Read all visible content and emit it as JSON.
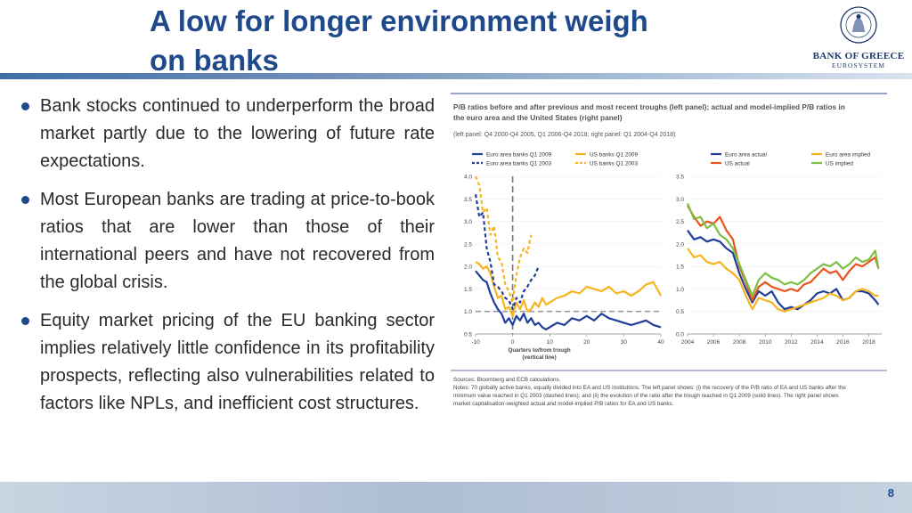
{
  "slide": {
    "title_line1": "A low for longer environment weigh",
    "title_line2": "on banks",
    "page_number": "8"
  },
  "logo": {
    "seal_text": "BANK OF GREECE 1928",
    "name": "BANK OF GREECE",
    "sub": "EUROSYSTEM"
  },
  "bullets": [
    "Bank stocks continued to underperform the broad market partly due to the lowering of future rate expectations.",
    "Most European banks are trading at price-to-book ratios that are lower than those of their international peers and have not recovered from the global crisis.",
    "Equity market pricing of the EU banking sector implies relatively little confidence in its profitability prospects, reflecting also vulnerabilities related to factors like NPLs, and inefficient cost structures."
  ],
  "figure": {
    "heading_line1": "P/B ratios before and after previous and most recent troughs (left panel); actual and model-implied P/B ratios in",
    "heading_line2": "the euro area and the United States (right panel)",
    "subheading": "(left panel: Q4 2000-Q4 2005, Q1 2006-Q4 2018; right panel: Q1 2004-Q4 2018)",
    "note_line1": "Sources: Bloomberg and ECB calculations.",
    "note_line2": "Notes: 70 globally active banks, equally divided into EA and US institutions. The left panel shows: (i) the recovery of the P/B ratio of EA and US banks after the",
    "note_line3": "minimum value reached in Q1 2003 (dashed lines); and (ii) the evolution of the ratio after the trough reached in Q1 2009 (solid lines). The right panel shows",
    "note_line4": "market capitalisation-weighted actual and model-implied P/B ratios for EA and US banks."
  },
  "colors": {
    "title": "#1e4a8c",
    "euro_area": "#1f3d99",
    "us": "#f6b51e",
    "euro_implied": "#f6b51e",
    "us_actual": "#e8541e",
    "us_implied": "#7bc043",
    "reference": "#9a9a9a"
  },
  "chart_data": [
    {
      "type": "line",
      "panel": "left",
      "xlabel": "Quarters to/from trough",
      "xlabel_sub": "(vertical line)",
      "ylabel": "",
      "xlim": [
        -10,
        40
      ],
      "ylim": [
        0.5,
        4.0
      ],
      "xticks": [
        "-10",
        "0",
        "10",
        "20",
        "30",
        "40"
      ],
      "yticks": [
        "0.5",
        "1.0",
        "1.5",
        "2.0",
        "2.5",
        "3.0",
        "3.5",
        "4.0"
      ],
      "reference_line": 1.0,
      "trough_line_x": 0,
      "legend_position": "top",
      "series": [
        {
          "name": "Euro area banks Q1 2009",
          "style": "solid",
          "color_key": "euro_area",
          "x": [
            -10,
            -9,
            -8,
            -7,
            -6,
            -5,
            -4,
            -3,
            -2,
            -1,
            0,
            1,
            2,
            3,
            4,
            5,
            6,
            7,
            8,
            9,
            10,
            12,
            14,
            16,
            18,
            20,
            22,
            24,
            26,
            28,
            30,
            32,
            34,
            36,
            38,
            40
          ],
          "y": [
            1.9,
            1.8,
            1.7,
            1.65,
            1.4,
            1.2,
            1.05,
            0.95,
            0.75,
            0.85,
            0.7,
            0.9,
            0.8,
            0.95,
            0.75,
            0.85,
            0.7,
            0.75,
            0.65,
            0.6,
            0.65,
            0.75,
            0.7,
            0.85,
            0.8,
            0.9,
            0.8,
            0.95,
            0.85,
            0.8,
            0.75,
            0.7,
            0.75,
            0.8,
            0.7,
            0.65
          ]
        },
        {
          "name": "US banks Q1 2009",
          "style": "solid",
          "color_key": "us",
          "x": [
            -10,
            -9,
            -8,
            -7,
            -6,
            -5,
            -4,
            -3,
            -2,
            -1,
            0,
            1,
            2,
            3,
            4,
            5,
            6,
            7,
            8,
            9,
            10,
            12,
            14,
            16,
            18,
            20,
            22,
            24,
            26,
            28,
            30,
            32,
            34,
            36,
            38,
            40
          ],
          "y": [
            2.1,
            2.05,
            1.95,
            2.0,
            1.85,
            1.55,
            1.3,
            1.35,
            1.05,
            1.1,
            0.9,
            1.2,
            1.05,
            1.25,
            1.0,
            1.05,
            1.2,
            1.1,
            1.3,
            1.15,
            1.2,
            1.3,
            1.35,
            1.45,
            1.4,
            1.55,
            1.5,
            1.45,
            1.55,
            1.4,
            1.45,
            1.35,
            1.45,
            1.6,
            1.65,
            1.35
          ]
        },
        {
          "name": "Euro area banks Q1 2003",
          "style": "dashed",
          "color_key": "euro_area",
          "x": [
            -10,
            -9,
            -8,
            -7,
            -6,
            -5,
            -4,
            -3,
            -2,
            -1,
            0,
            1,
            2,
            3,
            4,
            5,
            6,
            7
          ],
          "y": [
            3.6,
            3.1,
            3.2,
            2.4,
            2.1,
            1.6,
            1.55,
            1.45,
            1.3,
            1.25,
            1.05,
            1.3,
            1.2,
            1.45,
            1.55,
            1.7,
            1.8,
            2.0
          ]
        },
        {
          "name": "US banks Q1 2003",
          "style": "dashed",
          "color_key": "us",
          "x": [
            -10,
            -9,
            -8,
            -7,
            -6,
            -5,
            -4,
            -3,
            -2,
            -1,
            0,
            1,
            2,
            3,
            4,
            5
          ],
          "y": [
            4.0,
            3.8,
            3.2,
            3.3,
            2.7,
            2.9,
            2.2,
            2.1,
            1.6,
            1.45,
            1.2,
            1.8,
            2.2,
            2.4,
            2.3,
            2.7
          ]
        }
      ]
    },
    {
      "type": "line",
      "panel": "right",
      "xlabel": "",
      "ylabel": "",
      "xlim": [
        2004,
        2019
      ],
      "ylim": [
        0.0,
        3.5
      ],
      "xticks": [
        "2004",
        "2006",
        "2008",
        "2010",
        "2012",
        "2014",
        "2016",
        "2018"
      ],
      "yticks": [
        "0.0",
        "0.5",
        "1.0",
        "1.5",
        "2.0",
        "2.5",
        "3.0",
        "3.5"
      ],
      "legend_position": "top",
      "x": [
        2004.0,
        2004.5,
        2005.0,
        2005.5,
        2006.0,
        2006.5,
        2007.0,
        2007.5,
        2008.0,
        2008.5,
        2009.0,
        2009.5,
        2010.0,
        2010.5,
        2011.0,
        2011.5,
        2012.0,
        2012.5,
        2013.0,
        2013.5,
        2014.0,
        2014.5,
        2015.0,
        2015.5,
        2016.0,
        2016.5,
        2017.0,
        2017.5,
        2018.0,
        2018.5,
        2018.75
      ],
      "series": [
        {
          "name": "Euro area actual",
          "color_key": "euro_area",
          "y": [
            2.3,
            2.1,
            2.15,
            2.05,
            2.1,
            2.05,
            1.9,
            1.8,
            1.35,
            1.0,
            0.7,
            0.95,
            0.85,
            0.95,
            0.7,
            0.55,
            0.6,
            0.55,
            0.65,
            0.75,
            0.9,
            0.95,
            0.9,
            1.0,
            0.75,
            0.8,
            0.95,
            0.95,
            0.9,
            0.75,
            0.65
          ]
        },
        {
          "name": "Euro area implied",
          "color_key": "euro_implied",
          "y": [
            1.9,
            1.7,
            1.75,
            1.6,
            1.55,
            1.6,
            1.45,
            1.35,
            1.2,
            0.85,
            0.55,
            0.8,
            0.75,
            0.7,
            0.55,
            0.5,
            0.55,
            0.6,
            0.65,
            0.7,
            0.75,
            0.8,
            0.9,
            0.85,
            0.75,
            0.8,
            0.95,
            1.0,
            0.95,
            0.85,
            0.85
          ]
        },
        {
          "name": "US actual",
          "color_key": "us_actual",
          "y": [
            2.85,
            2.6,
            2.4,
            2.5,
            2.45,
            2.6,
            2.3,
            2.1,
            1.5,
            1.15,
            0.75,
            1.05,
            1.15,
            1.05,
            1.0,
            0.95,
            1.0,
            0.95,
            1.1,
            1.15,
            1.3,
            1.45,
            1.35,
            1.4,
            1.2,
            1.4,
            1.55,
            1.5,
            1.6,
            1.7,
            1.45
          ]
        },
        {
          "name": "US implied",
          "color_key": "us_implied",
          "y": [
            2.9,
            2.55,
            2.6,
            2.35,
            2.45,
            2.2,
            2.1,
            1.9,
            1.55,
            1.2,
            0.85,
            1.2,
            1.35,
            1.25,
            1.2,
            1.1,
            1.15,
            1.1,
            1.2,
            1.35,
            1.45,
            1.55,
            1.5,
            1.6,
            1.45,
            1.55,
            1.7,
            1.6,
            1.65,
            1.85,
            1.45
          ]
        }
      ]
    }
  ]
}
